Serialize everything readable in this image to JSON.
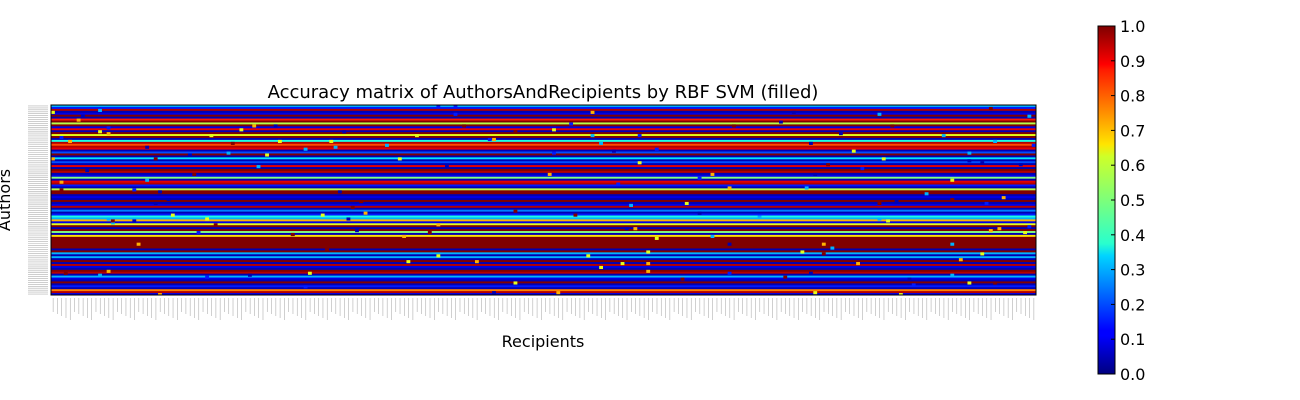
{
  "chart_data": {
    "type": "heatmap",
    "title": "Accuracy matrix of AuthorsAndRecipients by RBF SVM (filled)",
    "xlabel": "Recipients",
    "ylabel": "Authors",
    "colormap": "jet",
    "value_range": [
      0.0,
      1.0
    ],
    "colorbar_ticks": [
      "0.0",
      "0.1",
      "0.2",
      "0.3",
      "0.4",
      "0.5",
      "0.6",
      "0.7",
      "0.8",
      "0.9",
      "1.0"
    ],
    "n_cols": 230,
    "row_values": [
      0.3,
      0.15,
      0.95,
      0.05,
      0.1,
      1.0,
      0.05,
      0.85,
      1.0,
      0.55,
      1.0,
      0.1,
      0.9,
      0.05,
      1.0,
      0.6,
      1.0,
      0.05,
      0.4,
      0.95,
      0.8,
      0.95,
      0.9,
      0.05,
      0.2,
      1.0,
      0.05,
      0.35,
      0.05,
      0.2,
      0.05,
      0.9,
      0.05,
      1.0,
      0.95,
      0.05,
      0.1,
      0.5,
      0.05,
      0.9,
      0.95,
      0.15,
      0.05,
      0.55,
      1.0,
      1.0,
      0.05,
      0.1,
      0.05,
      1.0,
      0.05,
      0.1,
      0.95,
      0.05,
      0.25,
      0.05,
      0.15,
      0.4,
      0.3,
      0.7,
      0.1,
      0.6,
      1.0,
      0.05,
      1.0,
      0.5,
      0.05,
      0.65,
      1.0,
      1.0,
      1.0,
      1.0,
      1.0,
      1.0,
      0.05,
      1.0,
      0.3,
      0.05,
      0.3,
      0.05,
      1.0,
      0.05,
      0.95,
      0.1,
      0.05,
      1.0,
      0.95,
      0.05,
      0.3,
      0.1,
      0.05,
      1.0,
      0.05,
      0.15,
      0.05,
      0.75,
      0.95,
      0.1
    ],
    "grid": false,
    "colorbar_position": "right"
  }
}
